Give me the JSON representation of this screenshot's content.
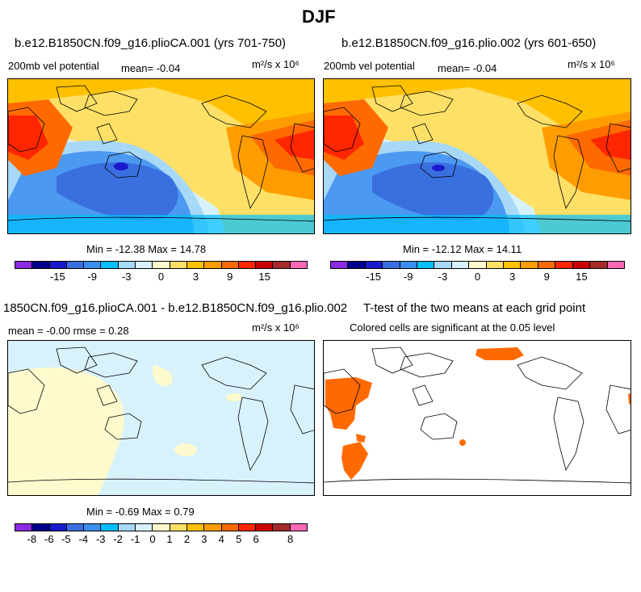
{
  "title": "DJF",
  "panels": [
    {
      "title": "b.e12.B1850CN.f09_g16.plioCA.001 (yrs 701-750)",
      "left_label": "200mb vel potential",
      "mean_label": "mean=   -0.04",
      "units": "m²/s x 10⁶",
      "stats": "Min = -12.38 Max =  14.78"
    },
    {
      "title": "b.e12.B1850CN.f09_g16.plio.002 (yrs 601-650)",
      "left_label": "200mb vel potential",
      "mean_label": "mean=   -0.04",
      "units": "m²/s x 10⁶",
      "stats": "Min = -12.12 Max =  14.11"
    },
    {
      "title": "1850CN.f09_g16.plioCA.001 - b.e12.B1850CN.f09_g16.plio.002",
      "left_label": "mean =   -0.00    rmse =    0.28",
      "units": "m²/s x 10⁶",
      "stats": "Min =  -0.69 Max =   0.79"
    },
    {
      "title": "T-test of the two means at each grid point",
      "subtitle": "Colored cells are significant at the 0.05 level"
    }
  ],
  "colorbar_main": {
    "colors": [
      "#8a2be2",
      "#00008b",
      "#1a1acd",
      "#3a6fe0",
      "#3c8ef0",
      "#00bfff",
      "#a8d8f8",
      "#d8f2fc",
      "#fffacd",
      "#ffe066",
      "#ffc000",
      "#ff9d00",
      "#ff6a00",
      "#ff2600",
      "#cc0000",
      "#a52a2a",
      "#ff69b4"
    ],
    "tick_labels": [
      "-15",
      "-9",
      "-3",
      "0",
      "3",
      "9",
      "15"
    ]
  },
  "colorbar_diff": {
    "colors": [
      "#8a2be2",
      "#00008b",
      "#1a1acd",
      "#3a6fe0",
      "#3c8ef0",
      "#00bfff",
      "#a8d8f8",
      "#d8f2fc",
      "#fffacd",
      "#ffe066",
      "#ffc000",
      "#ff9d00",
      "#ff6a00",
      "#ff2600",
      "#cc0000",
      "#a52a2a",
      "#ff69b4"
    ],
    "tick_labels": [
      "-8",
      "-6",
      "-5",
      "-4",
      "-3",
      "-2",
      "-1",
      "0",
      "1",
      "2",
      "3",
      "4",
      "5",
      "6",
      "8"
    ]
  }
}
